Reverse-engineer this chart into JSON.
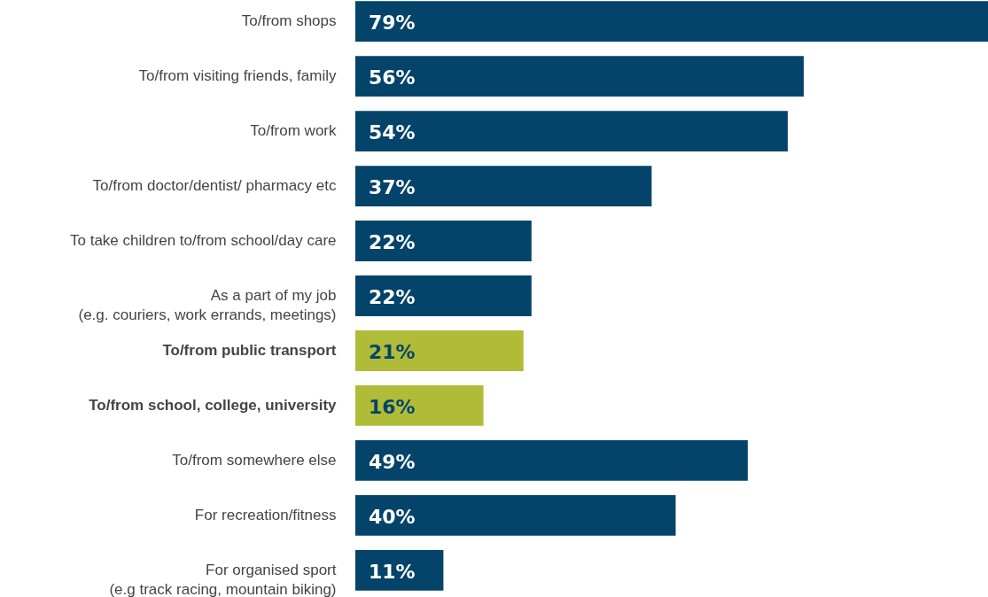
{
  "chart_data": {
    "type": "bar",
    "orientation": "horizontal",
    "categories": [
      "To/from shops",
      "To/from visiting friends, family",
      "To/from work",
      "To/from doctor/dentist/ pharmacy etc",
      "To take children to/from school/day care",
      "As a part of my job\n(e.g. couriers, work errands, meetings)",
      "To/from public transport",
      "To/from school, college, university",
      "To/from somewhere else",
      "For recreation/fitness",
      "For organised sport\n(e.g track racing, mountain biking)"
    ],
    "values": [
      79,
      56,
      54,
      37,
      22,
      22,
      21,
      16,
      49,
      40,
      11
    ],
    "value_labels": [
      "79%",
      "56%",
      "54%",
      "37%",
      "22%",
      "22%",
      "21%",
      "16%",
      "49%",
      "40%",
      "11%"
    ],
    "colors": [
      "#05446a",
      "#05446a",
      "#05446a",
      "#05446a",
      "#05446a",
      "#05446a",
      "#b0bc38",
      "#b0bc38",
      "#05446a",
      "#05446a",
      "#05446a"
    ]
  }
}
